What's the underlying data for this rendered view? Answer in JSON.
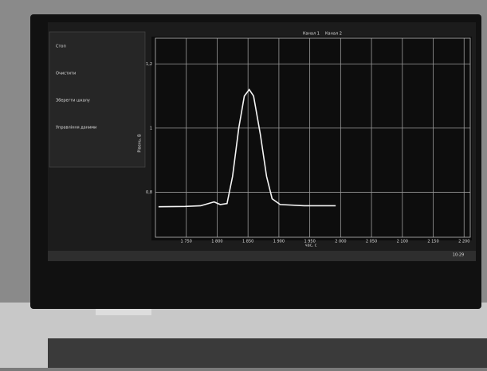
{
  "chart_data": {
    "type": "line",
    "x": [
      1705,
      1748,
      1773,
      1786,
      1795,
      1805,
      1816,
      1825,
      1835,
      1844,
      1852,
      1859,
      1870,
      1880,
      1889,
      1902,
      1941,
      1992
    ],
    "series": [
      {
        "name": "Канал 1",
        "color": "#f4f4f4",
        "values": [
          0.755,
          0.756,
          0.758,
          0.765,
          0.77,
          0.762,
          0.765,
          0.85,
          1.0,
          1.1,
          1.12,
          1.1,
          0.98,
          0.85,
          0.78,
          0.762,
          0.758,
          0.758
        ]
      }
    ],
    "xlim": [
      1700,
      2210
    ],
    "ylim": [
      0.66,
      1.28
    ],
    "xticks": [
      {
        "value": 1750,
        "label": "1 750"
      },
      {
        "value": 1800,
        "label": "1 800"
      },
      {
        "value": 1850,
        "label": "1 850"
      },
      {
        "value": 1900,
        "label": "1 900"
      },
      {
        "value": 1950,
        "label": "1 950"
      },
      {
        "value": 2000,
        "label": "2 000"
      },
      {
        "value": 2050,
        "label": "2 050"
      },
      {
        "value": 2100,
        "label": "2 100"
      },
      {
        "value": 2150,
        "label": "2 150"
      },
      {
        "value": 2200,
        "label": "2 200"
      }
    ],
    "yticks": [
      {
        "value": 0.8,
        "label": "0,8"
      },
      1,
      {
        "value": 1.2,
        "label": "1,2"
      }
    ],
    "x_label": "час, с",
    "y_label": "Рівень, В",
    "grid": true
  },
  "ui": {
    "channel_2": "Канал 2",
    "panel": [
      "Стоп",
      "Очистити",
      "Зберегти шкалу",
      "Управління даними"
    ],
    "clock": "10:29"
  }
}
